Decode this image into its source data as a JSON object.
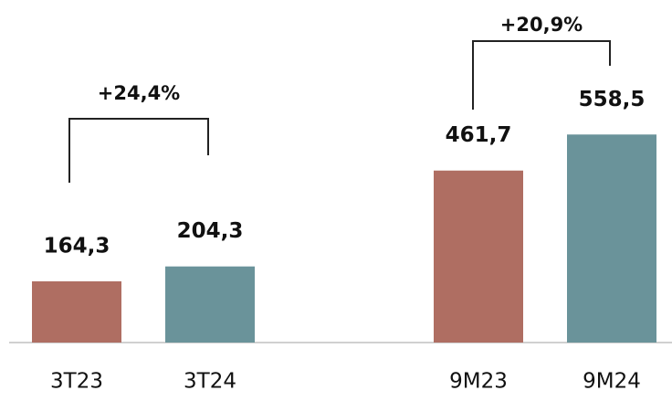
{
  "chart_data": {
    "type": "bar",
    "categories": [
      "3T23",
      "3T24",
      "9M23",
      "9M24"
    ],
    "values": [
      164.3,
      204.3,
      461.7,
      558.5
    ],
    "value_labels": [
      "164,3",
      "204,3",
      "461,7",
      "558,5"
    ],
    "colors": [
      "#af6e62",
      "#6a939a",
      "#af6e62",
      "#6a939a"
    ],
    "annotations": [
      "+24,4%",
      "+20,9%"
    ],
    "ylim": [
      0,
      900
    ]
  }
}
